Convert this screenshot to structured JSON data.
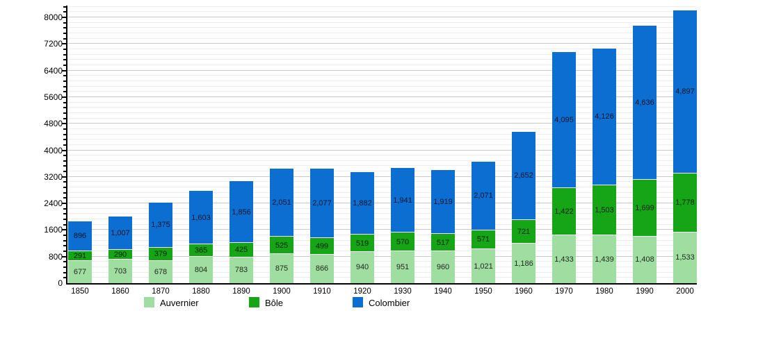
{
  "chart_data": {
    "type": "bar",
    "stacked": true,
    "title": "",
    "xlabel": "",
    "ylabel": "",
    "categories": [
      "1850",
      "1860",
      "1870",
      "1880",
      "1890",
      "1900",
      "1910",
      "1920",
      "1930",
      "1940",
      "1950",
      "1960",
      "1970",
      "1980",
      "1990",
      "2000"
    ],
    "series": [
      {
        "name": "Auvernier",
        "color": "#a0dda0",
        "values": [
          677,
          703,
          678,
          804,
          783,
          875,
          866,
          940,
          951,
          960,
          1021,
          1186,
          1433,
          1439,
          1408,
          1533
        ]
      },
      {
        "name": "Bôle",
        "color": "#16a516",
        "values": [
          291,
          290,
          379,
          365,
          425,
          525,
          499,
          519,
          570,
          517,
          571,
          721,
          1422,
          1503,
          1699,
          1778
        ]
      },
      {
        "name": "Colombier",
        "color": "#0d6ed1",
        "values": [
          896,
          1007,
          1375,
          1603,
          1856,
          2051,
          2077,
          1882,
          1941,
          1919,
          2071,
          2652,
          4095,
          4126,
          4636,
          4897
        ]
      }
    ],
    "ylim": [
      0,
      8000
    ],
    "ytick_step": 800,
    "yminor_step": 160,
    "ytick_labels": [
      "0",
      "800",
      "1600",
      "2400",
      "3200",
      "4000",
      "4800",
      "5600",
      "6400",
      "7200",
      "8000"
    ],
    "grid": true,
    "legend_position": "bottom",
    "value_labels_shown": true,
    "colors": {
      "grid_minor": "#ececec",
      "grid_major": "#c9c9c9",
      "axis": "#000000",
      "background": "#ffffff"
    }
  }
}
